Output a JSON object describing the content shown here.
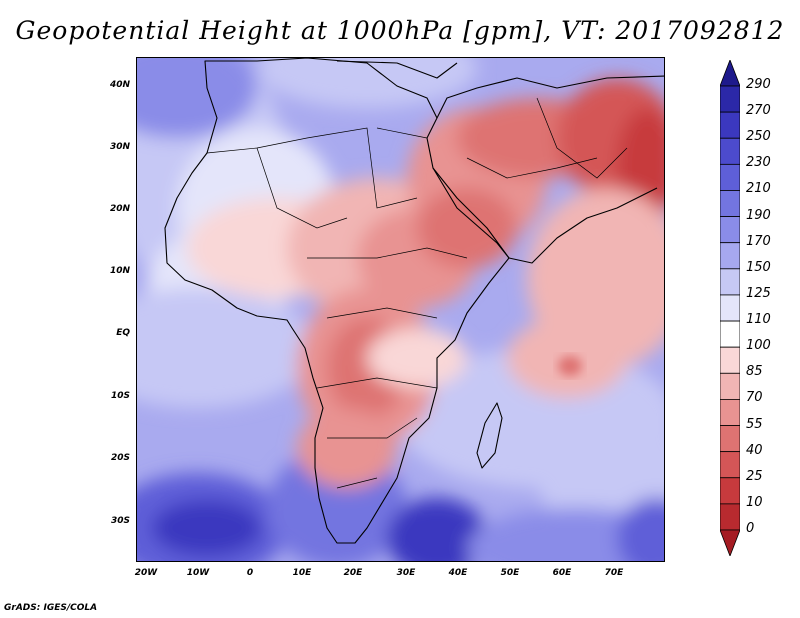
{
  "title": "Geopotential Height at 1000hPa [gpm], VT: 2017092812",
  "footer": "GrADS: IGES/COLA",
  "map": {
    "lat_labels": [
      "40N",
      "30N",
      "20N",
      "10N",
      "EQ",
      "10S",
      "20S",
      "30S"
    ],
    "lon_labels": [
      "20W",
      "10W",
      "0",
      "10E",
      "20E",
      "30E",
      "40E",
      "50E",
      "60E",
      "70E"
    ]
  },
  "colorbar": {
    "levels": [
      "290",
      "270",
      "250",
      "230",
      "210",
      "190",
      "170",
      "150",
      "125",
      "110",
      "100",
      "85",
      "70",
      "55",
      "40",
      "25",
      "10",
      "0"
    ],
    "colors": [
      "#1e1a8c",
      "#2b28a8",
      "#3b38bf",
      "#4c4bcd",
      "#5e5fd8",
      "#7375e0",
      "#8a8ce8",
      "#a6a8ef",
      "#c6c8f5",
      "#e4e5fa",
      "#ffffff",
      "#f9d7d7",
      "#f1b5b4",
      "#e89392",
      "#de7372",
      "#d45657",
      "#c73a3d",
      "#b82a2f",
      "#a51c23"
    ]
  }
}
